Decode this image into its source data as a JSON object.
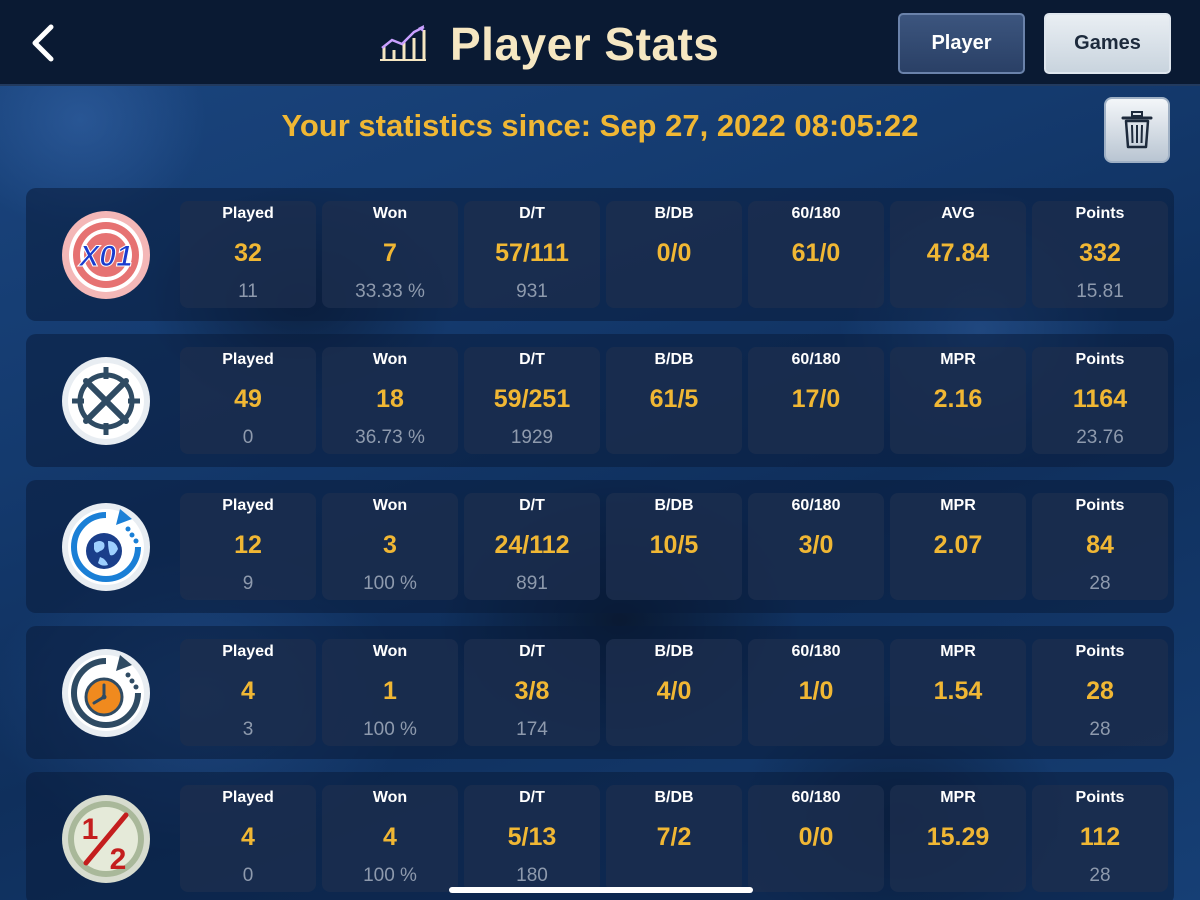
{
  "header": {
    "title": "Player Stats",
    "back_icon": "chevron-left-icon",
    "title_icon": "line-chart-icon",
    "tabs": [
      {
        "label": "Player",
        "selected": true
      },
      {
        "label": "Games",
        "selected": false
      }
    ]
  },
  "since_text": "Your statistics since: Sep 27, 2022 08:05:22",
  "trash_icon": "trash-icon",
  "colors": {
    "accent": "#f0b734",
    "title": "#f6e7c2",
    "background": "#143a6e"
  },
  "rows": [
    {
      "game": "X01",
      "icon": "x01-target-icon",
      "cells": [
        {
          "label": "Played",
          "value": "32",
          "sub": "11"
        },
        {
          "label": "Won",
          "value": "7",
          "sub": "33.33 %"
        },
        {
          "label": "D/T",
          "value": "57/111",
          "sub": "931"
        },
        {
          "label": "B/DB",
          "value": "0/0",
          "sub": ""
        },
        {
          "label": "60/180",
          "value": "61/0",
          "sub": ""
        },
        {
          "label": "AVG",
          "value": "47.84",
          "sub": ""
        },
        {
          "label": "Points",
          "value": "332",
          "sub": "15.81"
        }
      ]
    },
    {
      "game": "cricket",
      "icon": "cricket-crosshair-icon",
      "cells": [
        {
          "label": "Played",
          "value": "49",
          "sub": "0"
        },
        {
          "label": "Won",
          "value": "18",
          "sub": "36.73 %"
        },
        {
          "label": "D/T",
          "value": "59/251",
          "sub": "1929"
        },
        {
          "label": "B/DB",
          "value": "61/5",
          "sub": ""
        },
        {
          "label": "60/180",
          "value": "17/0",
          "sub": ""
        },
        {
          "label": "MPR",
          "value": "2.16",
          "sub": ""
        },
        {
          "label": "Points",
          "value": "1164",
          "sub": "23.76"
        }
      ]
    },
    {
      "game": "around the world",
      "icon": "globe-cycle-icon",
      "cells": [
        {
          "label": "Played",
          "value": "12",
          "sub": "9"
        },
        {
          "label": "Won",
          "value": "3",
          "sub": "100 %"
        },
        {
          "label": "D/T",
          "value": "24/112",
          "sub": "891"
        },
        {
          "label": "B/DB",
          "value": "10/5",
          "sub": ""
        },
        {
          "label": "60/180",
          "value": "3/0",
          "sub": ""
        },
        {
          "label": "MPR",
          "value": "2.07",
          "sub": ""
        },
        {
          "label": "Points",
          "value": "84",
          "sub": "28"
        }
      ]
    },
    {
      "game": "around the clock",
      "icon": "clock-cycle-icon",
      "cells": [
        {
          "label": "Played",
          "value": "4",
          "sub": "3"
        },
        {
          "label": "Won",
          "value": "1",
          "sub": "100 %"
        },
        {
          "label": "D/T",
          "value": "3/8",
          "sub": "174"
        },
        {
          "label": "B/DB",
          "value": "4/0",
          "sub": ""
        },
        {
          "label": "60/180",
          "value": "1/0",
          "sub": ""
        },
        {
          "label": "MPR",
          "value": "1.54",
          "sub": ""
        },
        {
          "label": "Points",
          "value": "28",
          "sub": "28"
        }
      ]
    },
    {
      "game": "halve it",
      "icon": "half-fraction-icon",
      "icon_text": "1/2",
      "cells": [
        {
          "label": "Played",
          "value": "4",
          "sub": "0"
        },
        {
          "label": "Won",
          "value": "4",
          "sub": "100 %"
        },
        {
          "label": "D/T",
          "value": "5/13",
          "sub": "180"
        },
        {
          "label": "B/DB",
          "value": "7/2",
          "sub": ""
        },
        {
          "label": "60/180",
          "value": "0/0",
          "sub": ""
        },
        {
          "label": "MPR",
          "value": "15.29",
          "sub": ""
        },
        {
          "label": "Points",
          "value": "112",
          "sub": "28"
        }
      ]
    }
  ]
}
